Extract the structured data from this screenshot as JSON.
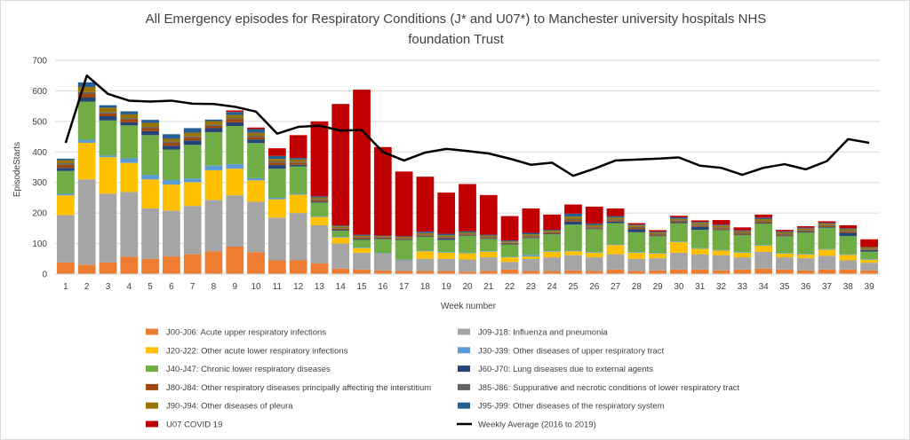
{
  "chart_data": {
    "type": "bar",
    "stacked": true,
    "title_line1": "All Emergency episodes for Respiratory Conditions (J* and U07*) to Manchester university hospitals NHS",
    "title_line2": "foundation Trust",
    "xlabel": "Week number",
    "ylabel": "EpisodeStarts",
    "ylim": [
      0,
      700
    ],
    "yticks": [
      0,
      100,
      200,
      300,
      400,
      500,
      600,
      700
    ],
    "grid": true,
    "legend_position": "bottom",
    "categories": [
      "1",
      "2",
      "3",
      "4",
      "5",
      "6",
      "7",
      "8",
      "9",
      "10",
      "11",
      "12",
      "13",
      "14",
      "15",
      "16",
      "17",
      "18",
      "19",
      "20",
      "21",
      "22",
      "23",
      "24",
      "25",
      "26",
      "27",
      "28",
      "29",
      "30",
      "31",
      "32",
      "33",
      "34",
      "35",
      "36",
      "37",
      "38",
      "39"
    ],
    "series": [
      {
        "name": "J00-J06: Acute upper respiratory infections",
        "color": "#ed7d31",
        "values": [
          38,
          30,
          38,
          57,
          50,
          58,
          65,
          75,
          90,
          72,
          45,
          45,
          35,
          18,
          15,
          12,
          10,
          10,
          10,
          8,
          10,
          15,
          10,
          10,
          12,
          10,
          15,
          10,
          12,
          15,
          15,
          12,
          15,
          18,
          15,
          12,
          15,
          15,
          12
        ]
      },
      {
        "name": "J09-J18: Influenza and pneumonia",
        "color": "#a5a5a5",
        "values": [
          155,
          280,
          225,
          212,
          165,
          150,
          158,
          168,
          168,
          165,
          140,
          155,
          125,
          82,
          55,
          55,
          35,
          40,
          40,
          40,
          45,
          25,
          40,
          45,
          50,
          45,
          50,
          40,
          40,
          55,
          50,
          50,
          40,
          55,
          40,
          40,
          45,
          30,
          25
        ]
      },
      {
        "name": "J20-J22: Other acute lower respiratory infections",
        "color": "#ffc000",
        "values": [
          65,
          120,
          120,
          95,
          95,
          85,
          78,
          97,
          87,
          70,
          60,
          60,
          27,
          20,
          15,
          0,
          0,
          25,
          20,
          20,
          18,
          15,
          8,
          18,
          13,
          15,
          30,
          20,
          15,
          35,
          18,
          15,
          15,
          20,
          12,
          12,
          20,
          18,
          10
        ]
      },
      {
        "name": "J30-J39: Other diseases of upper respiratory tract",
        "color": "#5b9bd5",
        "values": [
          5,
          10,
          5,
          15,
          15,
          15,
          12,
          15,
          15,
          7,
          5,
          3,
          2,
          2,
          2,
          2,
          2,
          2,
          2,
          2,
          2,
          2,
          5,
          2,
          2,
          2,
          2,
          2,
          2,
          2,
          2,
          2,
          2,
          2,
          2,
          2,
          2,
          2,
          2
        ]
      },
      {
        "name": "J40-J47: Chronic lower respiratory diseases",
        "color": "#70ad47",
        "values": [
          75,
          125,
          115,
          108,
          130,
          100,
          110,
          110,
          125,
          115,
          95,
          90,
          45,
          20,
          25,
          45,
          65,
          45,
          40,
          55,
          40,
          40,
          55,
          55,
          85,
          75,
          70,
          65,
          55,
          60,
          60,
          65,
          55,
          70,
          55,
          70,
          70,
          60,
          25
        ]
      },
      {
        "name": "J60-J70: Lung diseases due to external agents",
        "color": "#264478",
        "values": [
          10,
          13,
          14,
          10,
          13,
          12,
          15,
          13,
          12,
          12,
          12,
          5,
          3,
          3,
          3,
          2,
          2,
          2,
          5,
          2,
          2,
          2,
          2,
          2,
          10,
          2,
          5,
          10,
          2,
          3,
          10,
          2,
          2,
          2,
          2,
          2,
          2,
          10,
          5
        ]
      },
      {
        "name": "J80-J84: Other respiratory diseases principally affecting the interstitium",
        "color": "#9e480e",
        "values": [
          10,
          13,
          9,
          10,
          10,
          10,
          9,
          7,
          10,
          8,
          8,
          7,
          6,
          4,
          4,
          3,
          3,
          3,
          3,
          3,
          3,
          3,
          3,
          3,
          5,
          3,
          4,
          4,
          3,
          3,
          4,
          4,
          3,
          4,
          3,
          3,
          3,
          4,
          2
        ]
      },
      {
        "name": "J85-J86: Suppurative and necrotic conditions of lower respiratory tract",
        "color": "#636363",
        "values": [
          5,
          5,
          5,
          4,
          4,
          4,
          4,
          4,
          4,
          4,
          4,
          3,
          3,
          2,
          2,
          2,
          2,
          2,
          2,
          2,
          2,
          2,
          2,
          2,
          3,
          3,
          3,
          3,
          3,
          3,
          3,
          3,
          3,
          3,
          3,
          3,
          3,
          3,
          2
        ]
      },
      {
        "name": "J90-J94: Other diseases of pleura",
        "color": "#997300",
        "values": [
          10,
          17,
          14,
          12,
          13,
          9,
          12,
          12,
          10,
          10,
          8,
          7,
          5,
          5,
          5,
          3,
          3,
          5,
          5,
          4,
          4,
          3,
          5,
          5,
          8,
          6,
          6,
          5,
          4,
          5,
          6,
          6,
          5,
          6,
          5,
          5,
          5,
          5,
          4
        ]
      },
      {
        "name": "J95-J99: Other diseases of the respiratory system",
        "color": "#255e91",
        "values": [
          5,
          15,
          8,
          10,
          10,
          15,
          15,
          5,
          10,
          12,
          10,
          5,
          4,
          3,
          3,
          2,
          2,
          5,
          5,
          4,
          3,
          3,
          5,
          3,
          10,
          5,
          5,
          3,
          3,
          5,
          3,
          3,
          3,
          5,
          3,
          3,
          3,
          3,
          2
        ]
      },
      {
        "name": "U07 COVID 19",
        "color": "#c00000",
        "values": [
          0,
          0,
          0,
          0,
          0,
          0,
          0,
          0,
          5,
          5,
          25,
          75,
          245,
          398,
          475,
          290,
          212,
          180,
          135,
          155,
          130,
          80,
          80,
          50,
          30,
          55,
          25,
          5,
          5,
          5,
          5,
          15,
          10,
          10,
          5,
          5,
          5,
          10,
          25
        ]
      }
    ],
    "line": {
      "name": "Weekly Average (2016 to 2019)",
      "color": "#000000",
      "values": [
        430,
        650,
        590,
        568,
        565,
        568,
        558,
        557,
        548,
        532,
        460,
        482,
        486,
        470,
        472,
        400,
        372,
        398,
        410,
        403,
        395,
        378,
        358,
        365,
        322,
        345,
        372,
        375,
        378,
        382,
        355,
        348,
        325,
        348,
        360,
        343,
        370,
        442,
        430
      ]
    }
  }
}
